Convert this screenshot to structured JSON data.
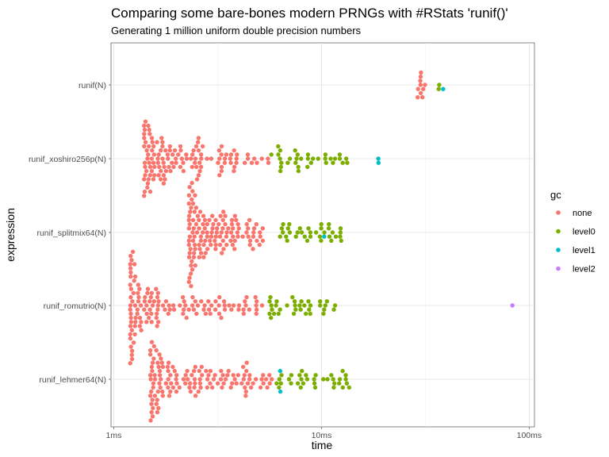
{
  "chart_data": {
    "type": "scatter",
    "subtype": "beeswarm",
    "title": "Comparing some bare-bones modern PRNGs with #RStats 'runif()'",
    "subtitle": "Generating 1 million uniform double precision numbers",
    "xlabel": "time",
    "ylabel": "expression",
    "x_scale": "log10",
    "x_unit": "ms",
    "xlim": [
      0.97,
      106
    ],
    "x_ticks": [
      1,
      10,
      100
    ],
    "x_tick_labels": [
      "1ms",
      "10ms",
      "100ms"
    ],
    "categories": [
      "runif(N)",
      "runif_xoshiro256p(N)",
      "runif_splitmix64(N)",
      "runif_romutrio(N)",
      "runif_lehmer64(N)"
    ],
    "legend": {
      "title": "gc",
      "position": "right",
      "entries": [
        {
          "label": "none",
          "color": "#F8766D"
        },
        {
          "label": "level0",
          "color": "#7CAE00"
        },
        {
          "label": "level1",
          "color": "#00BFC4"
        },
        {
          "label": "level2",
          "color": "#C77CFF"
        }
      ]
    },
    "grid": true,
    "series_summary": [
      {
        "expression": "runif(N)",
        "none_ms": [
          29.0,
          31.5
        ],
        "level0_ms": [
          36.5,
          37.0
        ],
        "level1_ms": [
          38.5
        ]
      },
      {
        "expression": "runif_xoshiro256p(N)",
        "none_ms": [
          1.4,
          5.6
        ],
        "level0_ms": [
          5.7,
          13.5
        ],
        "level1_ms": [
          18.5,
          19.8
        ]
      },
      {
        "expression": "runif_splitmix64(N)",
        "none_ms": [
          2.3,
          5.3
        ],
        "level0_ms": [
          6.3,
          12.5
        ],
        "level1_ms": [
          10.3
        ]
      },
      {
        "expression": "runif_romutrio(N)",
        "none_ms": [
          1.2,
          5.5
        ],
        "level0_ms": [
          5.6,
          12.0
        ],
        "level2_ms": [
          83.0
        ]
      },
      {
        "expression": "runif_lehmer64(N)",
        "none_ms": [
          1.5,
          5.8
        ],
        "level0_ms": [
          5.8,
          14.0
        ],
        "level1_ms": [
          6.3,
          6.6
        ]
      }
    ]
  }
}
